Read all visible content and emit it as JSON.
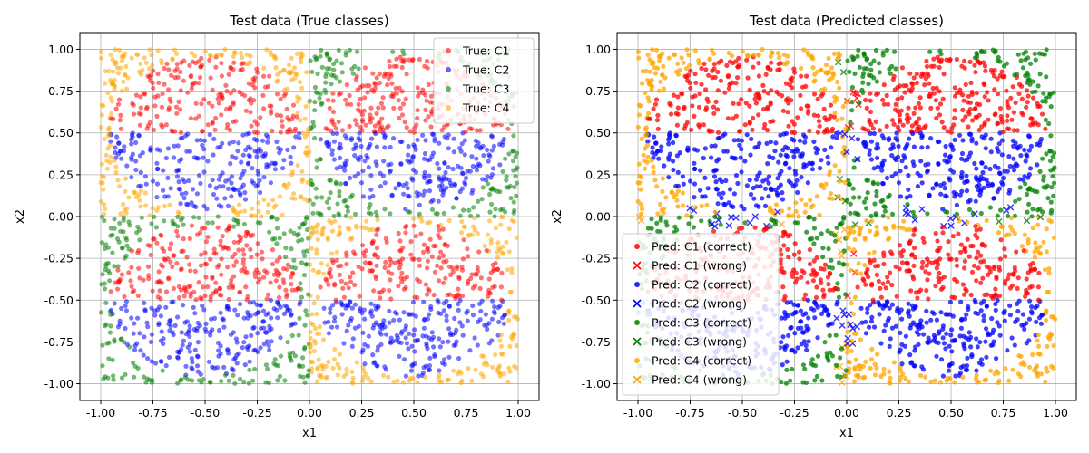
{
  "chart_data": [
    {
      "type": "scatter",
      "title": "Test data (True classes)",
      "xlabel": "x1",
      "ylabel": "x2",
      "xlim": [
        -1.1,
        1.1
      ],
      "ylim": [
        -1.1,
        1.1
      ],
      "xticks": [
        "-1.00",
        "-0.75",
        "-0.50",
        "-0.25",
        "0.00",
        "0.25",
        "0.50",
        "0.75",
        "1.00"
      ],
      "yticks": [
        "1.00",
        "0.75",
        "0.50",
        "0.25",
        "0.00",
        "-0.25",
        "-0.50",
        "-0.75",
        "-1.00"
      ],
      "grid": true,
      "legend_position": "upper right",
      "domain": [
        -1,
        1
      ],
      "series": [
        {
          "name": "True: C1",
          "color": "#ff0000",
          "marker": "circle"
        },
        {
          "name": "True: C2",
          "color": "#0000ff",
          "marker": "circle"
        },
        {
          "name": "True: C3",
          "color": "#008000",
          "marker": "circle"
        },
        {
          "name": "True: C4",
          "color": "#ffa500",
          "marker": "circle"
        }
      ]
    },
    {
      "type": "scatter",
      "title": "Test data (Predicted classes)",
      "xlabel": "x1",
      "ylabel": "x2",
      "xlim": [
        -1.1,
        1.1
      ],
      "ylim": [
        -1.1,
        1.1
      ],
      "xticks": [
        "-1.00",
        "-0.75",
        "-0.50",
        "-0.25",
        "0.00",
        "0.25",
        "0.50",
        "0.75",
        "1.00"
      ],
      "yticks": [
        "1.00",
        "0.75",
        "0.50",
        "0.25",
        "0.00",
        "-0.25",
        "-0.50",
        "-0.75",
        "-1.00"
      ],
      "grid": true,
      "legend_position": "lower left",
      "domain": [
        -1,
        1
      ],
      "series": [
        {
          "name": "Pred: C1 (correct)",
          "color": "#ff0000",
          "marker": "circle"
        },
        {
          "name": "Pred: C1 (wrong)",
          "color": "#ff0000",
          "marker": "x"
        },
        {
          "name": "Pred: C2 (correct)",
          "color": "#0000ff",
          "marker": "circle"
        },
        {
          "name": "Pred: C2 (wrong)",
          "color": "#0000ff",
          "marker": "x"
        },
        {
          "name": "Pred: C3 (correct)",
          "color": "#008000",
          "marker": "circle"
        },
        {
          "name": "Pred: C3 (wrong)",
          "color": "#008000",
          "marker": "x"
        },
        {
          "name": "Pred: C4 (correct)",
          "color": "#ffa500",
          "marker": "circle"
        },
        {
          "name": "Pred: C4 (wrong)",
          "color": "#ffa500",
          "marker": "x"
        }
      ]
    }
  ]
}
